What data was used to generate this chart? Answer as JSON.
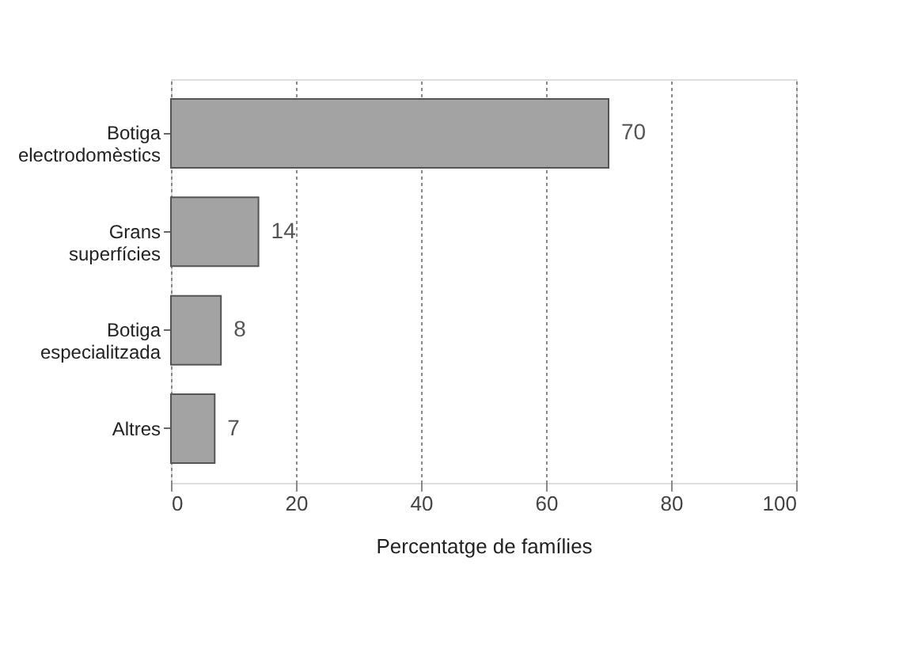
{
  "chart_data": {
    "type": "bar",
    "orientation": "horizontal",
    "xlabel": "Percentatge de famílies",
    "categories": [
      "Botiga electrodomèstics",
      "Grans superfícies",
      "Botiga especialitzada",
      "Altres"
    ],
    "values": [
      70,
      14,
      8,
      7
    ],
    "color": "#a3a3a3",
    "xlim": [
      0,
      100
    ],
    "xticks": [
      0,
      20,
      40,
      60,
      80,
      100
    ],
    "grid": "x",
    "data_labels": true
  }
}
